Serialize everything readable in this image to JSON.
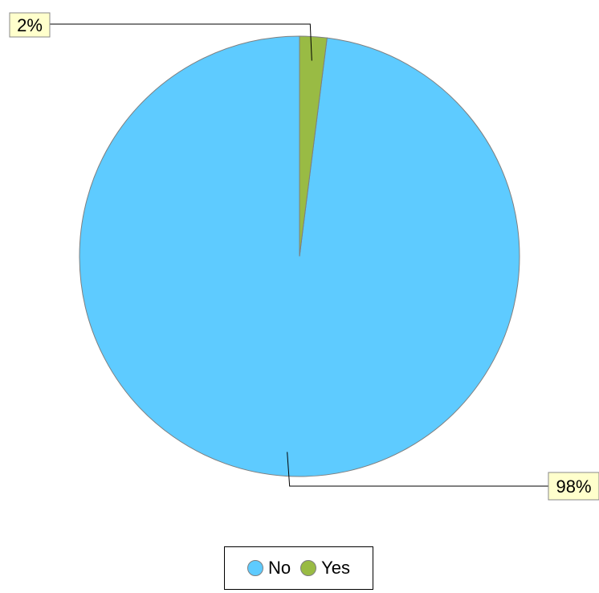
{
  "chart_data": {
    "type": "pie",
    "categories": [
      "No",
      "Yes"
    ],
    "values": [
      98,
      2
    ],
    "data_labels": [
      "98%",
      "2%"
    ],
    "colors": [
      "#5ecbff",
      "#99bb44"
    ],
    "legend_position": "bottom",
    "label_background": "#ffffcc",
    "start_angle": "top",
    "direction": "counter-clockwise"
  },
  "legend": {
    "items": [
      {
        "label": "No",
        "color": "#5ecbff"
      },
      {
        "label": "Yes",
        "color": "#99bb44"
      }
    ]
  }
}
